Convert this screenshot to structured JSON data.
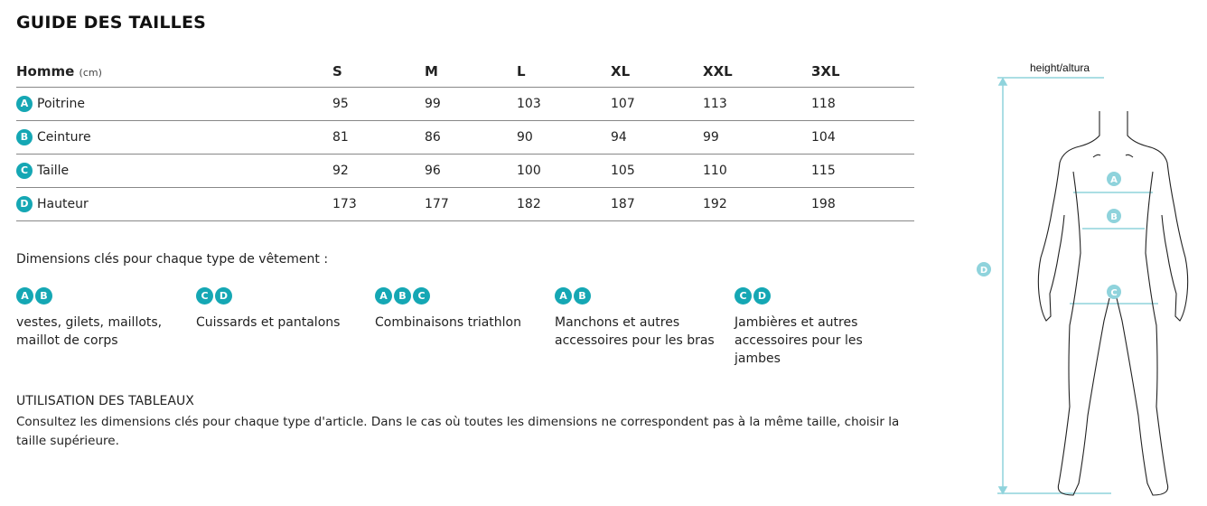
{
  "title": "GUIDE DES TAILLES",
  "table": {
    "header": {
      "label": "Homme",
      "unit": "(cm)",
      "sizes": [
        "S",
        "M",
        "L",
        "XL",
        "XXL",
        "3XL"
      ]
    },
    "rows": [
      {
        "badge": "A",
        "label": "Poitrine",
        "values": [
          "95",
          "99",
          "103",
          "107",
          "113",
          "118"
        ]
      },
      {
        "badge": "B",
        "label": "Ceinture",
        "values": [
          "81",
          "86",
          "90",
          "94",
          "99",
          "104"
        ]
      },
      {
        "badge": "C",
        "label": "Taille",
        "values": [
          "92",
          "96",
          "100",
          "105",
          "110",
          "115"
        ]
      },
      {
        "badge": "D",
        "label": "Hauteur",
        "values": [
          "173",
          "177",
          "182",
          "187",
          "192",
          "198"
        ]
      }
    ]
  },
  "key_dimensions_title": "Dimensions clés pour chaque type de vêtement :",
  "groups": [
    {
      "badges": [
        "A",
        "B"
      ],
      "text": "vestes, gilets, maillots, maillot de corps"
    },
    {
      "badges": [
        "C",
        "D"
      ],
      "text": "Cuissards et pantalons"
    },
    {
      "badges": [
        "A",
        "B",
        "C"
      ],
      "text": "Combinaisons triathlon"
    },
    {
      "badges": [
        "A",
        "B"
      ],
      "text": "Manchons et autres accessoires pour les bras"
    },
    {
      "badges": [
        "C",
        "D"
      ],
      "text": "Jambières et autres accessoires pour les jambes"
    }
  ],
  "usage": {
    "title": "UTILISATION DES TABLEAUX",
    "text": "Consultez les dimensions clés pour chaque type d'article. Dans le cas où toutes les dimensions ne correspondent pas à la même taille, choisir la taille supérieure."
  },
  "figure": {
    "label": "height/altura",
    "markers": [
      "A",
      "B",
      "C",
      "D"
    ],
    "accent": "#8fd3dc"
  },
  "colors": {
    "badge": "#15a7b4",
    "figure_marker": "#8fd3dc"
  }
}
